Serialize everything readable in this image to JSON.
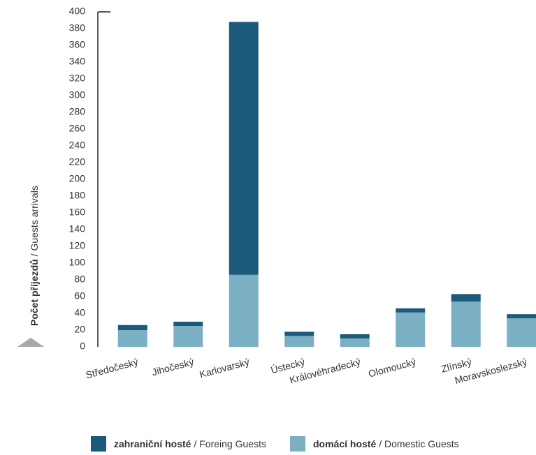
{
  "chart_data": {
    "type": "stacked-bar",
    "y_label": {
      "bold": "Počet příjezdů",
      "rest": "/ Guests arrivals"
    },
    "categories": [
      "Středočeský",
      "Jihočeský",
      "Karlovarský",
      "Ústecký",
      "Královéhradecký",
      "Olomoucký",
      "Zlínský",
      "Moravskoslezský"
    ],
    "series": [
      {
        "name": "zahraniční hosté",
        "name_en": "/ Foreing Guests",
        "color": "#1b5a78",
        "values": [
          6,
          5,
          302,
          5,
          5,
          5,
          9,
          5
        ]
      },
      {
        "name": "domácí hosté",
        "name_en": "/ Domestic Guests",
        "color": "#7aafc4",
        "values": [
          20,
          25,
          86,
          13,
          10,
          41,
          54,
          34
        ]
      }
    ],
    "ylim": [
      0,
      400
    ],
    "yticks": [
      0,
      20,
      40,
      60,
      80,
      100,
      120,
      140,
      160,
      180,
      200,
      220,
      240,
      260,
      280,
      300,
      320,
      340,
      360,
      380,
      400
    ],
    "grid": false
  }
}
